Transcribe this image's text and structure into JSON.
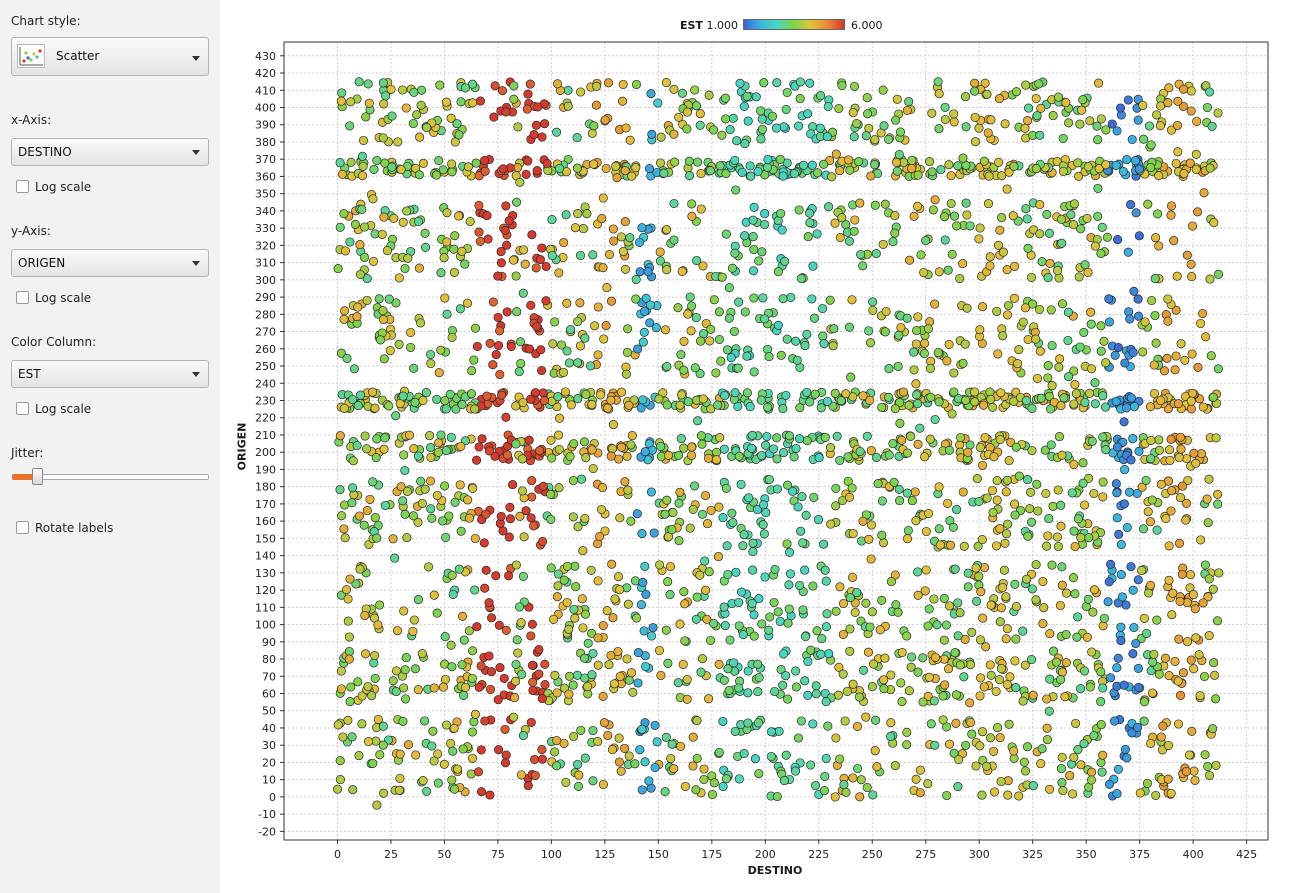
{
  "sidebar": {
    "chart_style_label": "Chart style:",
    "chart_style_value": "Scatter",
    "x_axis_label": "x-Axis:",
    "x_axis_value": "DESTINO",
    "y_axis_label": "y-Axis:",
    "y_axis_value": "ORIGEN",
    "color_column_label": "Color Column:",
    "color_column_value": "EST",
    "log_scale_label": "Log scale",
    "jitter_label": "Jitter:",
    "jitter_value": 0.1,
    "rotate_labels_label": "Rotate labels",
    "accent_color": "#e8742a",
    "icons": [
      "scatter-chart-icon",
      "chevron-down-icon",
      "checkbox-icon"
    ]
  },
  "chart_data": {
    "type": "scatter",
    "xlabel": "DESTINO",
    "ylabel": "ORIGEN",
    "xlim": [
      -25,
      435
    ],
    "ylim": [
      -25,
      438
    ],
    "x_ticks": [
      0,
      25,
      50,
      75,
      100,
      125,
      150,
      175,
      200,
      225,
      250,
      275,
      300,
      325,
      350,
      375,
      400,
      425
    ],
    "y_ticks": [
      -20,
      -10,
      0,
      10,
      20,
      30,
      40,
      50,
      60,
      70,
      80,
      90,
      100,
      110,
      120,
      130,
      140,
      150,
      160,
      170,
      180,
      190,
      200,
      210,
      220,
      230,
      240,
      250,
      260,
      270,
      280,
      290,
      300,
      310,
      320,
      330,
      340,
      350,
      360,
      370,
      380,
      390,
      400,
      410,
      420,
      430
    ],
    "grid": true,
    "color_scale": {
      "title": "EST",
      "min_label": "1.000",
      "max_label": "6.000",
      "min": 1,
      "max": 6,
      "colors": [
        "#3d63d6",
        "#3ab6e0",
        "#49d6c0",
        "#7fd44a",
        "#e2c23a",
        "#e88c33",
        "#d43a2d"
      ]
    },
    "x_range": [
      0,
      412
    ],
    "y_range": [
      -5,
      415
    ],
    "origen_bands": [
      [
        0,
        45
      ],
      [
        55,
        85
      ],
      [
        90,
        135
      ],
      [
        145,
        185
      ],
      [
        195,
        210
      ],
      [
        225,
        235
      ],
      [
        245,
        290
      ],
      [
        300,
        345
      ],
      [
        360,
        370
      ],
      [
        380,
        415
      ]
    ],
    "est_by_destino": [
      {
        "x": [
          65,
          82
        ],
        "est": 6
      },
      {
        "x": [
          88,
          98
        ],
        "est": 6
      },
      {
        "x": [
          120,
          135
        ],
        "est": 4.5
      },
      {
        "x": [
          140,
          150
        ],
        "est": 2
      },
      {
        "x": [
          180,
          230
        ],
        "est": 3
      },
      {
        "x": [
          300,
          315
        ],
        "est": 4.2
      },
      {
        "x": [
          360,
          375
        ],
        "est": 1.5
      },
      {
        "x": [
          385,
          405
        ],
        "est": 4.6
      }
    ],
    "default_est": 3.8
  }
}
